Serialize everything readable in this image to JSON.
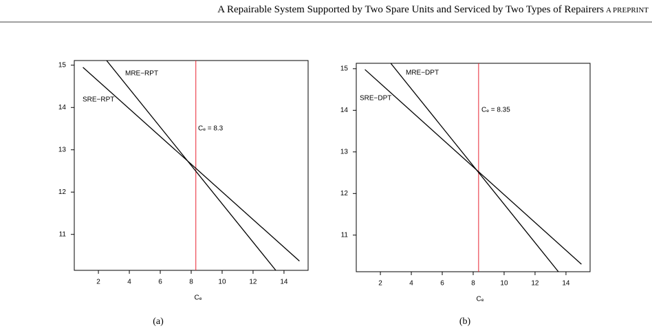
{
  "header": {
    "title": "A Repairable System Supported by Two Spare Units and Serviced by Two Types of Repairers",
    "tag": "A PREPRINT"
  },
  "chart_data": [
    {
      "type": "line",
      "caption": "(a)",
      "x_label": "Cₑ",
      "xlim": [
        0.44,
        15.56
      ],
      "xticks": [
        2,
        4,
        6,
        8,
        10,
        12,
        14
      ],
      "ylim": [
        10.15,
        15.11
      ],
      "yticks": [
        11,
        12,
        13,
        14,
        15
      ],
      "series": [
        {
          "name": "MRE−RPT",
          "color": "#000000",
          "x": [
            2.53,
            13.47
          ],
          "values": [
            15.11,
            10.15
          ]
        },
        {
          "name": "SRE−RPT",
          "color": "#000000",
          "x": [
            1,
            15
          ],
          "values": [
            14.95,
            10.37
          ]
        }
      ],
      "vline": {
        "x": 8.3,
        "label": "Cₑ = 8.3",
        "color": "#e8212e"
      }
    },
    {
      "type": "line",
      "caption": "(b)",
      "x_label": "Cₑ",
      "xlim": [
        0.44,
        15.56
      ],
      "xticks": [
        2,
        4,
        6,
        8,
        10,
        12,
        14
      ],
      "ylim": [
        10.12,
        15.13
      ],
      "yticks": [
        11,
        12,
        13,
        14,
        15
      ],
      "series": [
        {
          "name": "MRE−DPT",
          "color": "#000000",
          "x": [
            2.67,
            13.51
          ],
          "values": [
            15.13,
            10.12
          ]
        },
        {
          "name": "SRE−DPT",
          "color": "#000000",
          "x": [
            1,
            15
          ],
          "values": [
            14.98,
            10.3
          ]
        }
      ],
      "vline": {
        "x": 8.35,
        "label": "Cₑ = 8.35",
        "color": "#e8212e"
      }
    }
  ]
}
